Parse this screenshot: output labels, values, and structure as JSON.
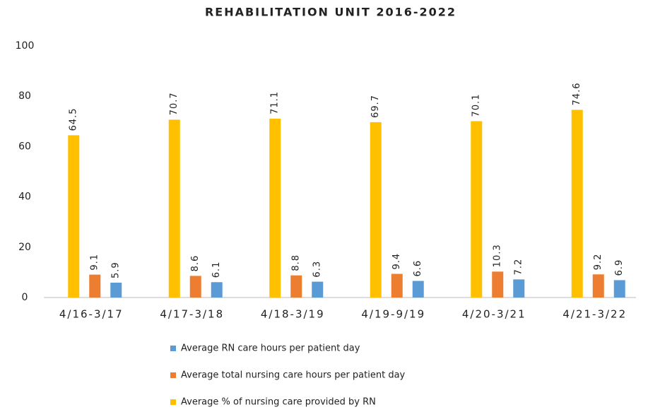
{
  "chart_data": {
    "type": "bar",
    "title": "REHABILITATION UNIT 2016-2022",
    "categories": [
      "4/16-3/17",
      "4/17-3/18",
      "4/18-3/19",
      "4/19-9/19",
      "4/20-3/21",
      "4/21-3/22"
    ],
    "series": [
      {
        "name": "Average RN care hours per patient day",
        "color": "#5b9bd5",
        "values": [
          5.9,
          6.1,
          6.3,
          6.6,
          7.2,
          6.9
        ]
      },
      {
        "name": "Average total nursing care hours per patient day",
        "color": "#ed7d31",
        "values": [
          9.1,
          8.6,
          8.8,
          9.4,
          10.3,
          9.2
        ]
      },
      {
        "name": "Average % of nursing care provided by RN",
        "color": "#ffc000",
        "values": [
          64.5,
          70.7,
          71.1,
          69.7,
          70.1,
          74.6
        ]
      }
    ],
    "ylim": [
      0,
      100
    ],
    "yticks": [
      0,
      20,
      40,
      60,
      80,
      100
    ],
    "grid": false
  }
}
